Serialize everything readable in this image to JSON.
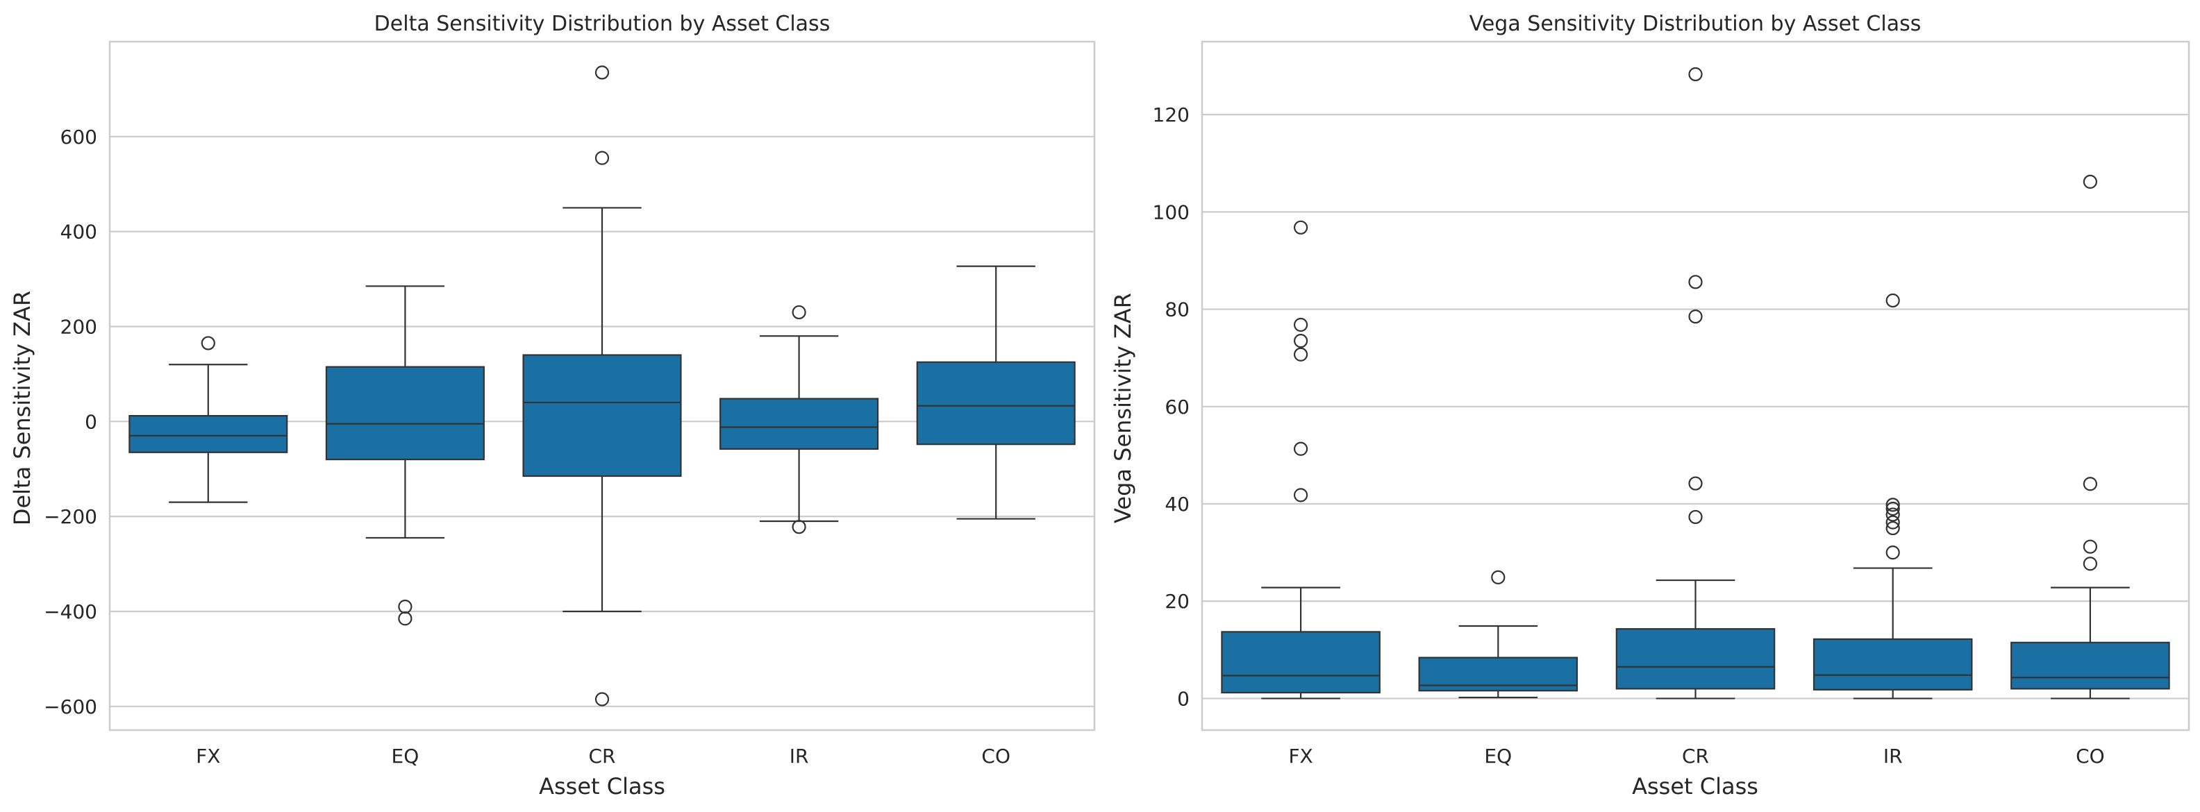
{
  "colors": {
    "box_fill": "#1a6fa3",
    "box_edge": "#333333",
    "grid": "#cccccc",
    "spine": "#cccccc",
    "background": "#ffffff"
  },
  "chart_data": [
    {
      "type": "box",
      "title": "Delta Sensitivity Distribution by Asset Class",
      "xlabel": "Asset Class",
      "ylabel": "Delta Sensitivity ZAR",
      "categories": [
        "FX",
        "EQ",
        "CR",
        "IR",
        "CO"
      ],
      "ylim": [
        -650,
        800
      ],
      "yticks": [
        -600,
        -400,
        -200,
        0,
        200,
        400,
        600
      ],
      "ytick_labels": [
        "−600",
        "−400",
        "−200",
        "0",
        "200",
        "400",
        "600"
      ],
      "grid": "horizontal",
      "boxes": [
        {
          "category": "FX",
          "whisker_low": -170,
          "q1": -65,
          "median": -30,
          "q3": 12,
          "whisker_high": 120,
          "outliers": [
            165
          ]
        },
        {
          "category": "EQ",
          "whisker_low": -245,
          "q1": -80,
          "median": -5,
          "q3": 115,
          "whisker_high": 285,
          "outliers": [
            -390,
            -415
          ]
        },
        {
          "category": "CR",
          "whisker_low": -400,
          "q1": -115,
          "median": 40,
          "q3": 140,
          "whisker_high": 450,
          "outliers": [
            555,
            735,
            -585
          ]
        },
        {
          "category": "IR",
          "whisker_low": -210,
          "q1": -58,
          "median": -12,
          "q3": 48,
          "whisker_high": 180,
          "outliers": [
            230,
            -222
          ]
        },
        {
          "category": "CO",
          "whisker_low": -205,
          "q1": -48,
          "median": 33,
          "q3": 125,
          "whisker_high": 327,
          "outliers": []
        }
      ]
    },
    {
      "type": "box",
      "title": "Vega Sensitivity Distribution by Asset Class",
      "xlabel": "Asset Class",
      "ylabel": "Vega Sensitivity ZAR",
      "categories": [
        "FX",
        "EQ",
        "CR",
        "IR",
        "CO"
      ],
      "ylim": [
        -6.5,
        135
      ],
      "yticks": [
        0,
        20,
        40,
        60,
        80,
        100,
        120
      ],
      "ytick_labels": [
        "0",
        "20",
        "40",
        "60",
        "80",
        "100",
        "120"
      ],
      "grid": "horizontal",
      "boxes": [
        {
          "category": "FX",
          "whisker_low": 0,
          "q1": 1.2,
          "median": 4.7,
          "q3": 13.7,
          "whisker_high": 22.8,
          "outliers": [
            41.8,
            51.3,
            70.7,
            73.5,
            76.8,
            96.8
          ]
        },
        {
          "category": "EQ",
          "whisker_low": 0.2,
          "q1": 1.6,
          "median": 2.7,
          "q3": 8.4,
          "whisker_high": 14.9,
          "outliers": [
            24.9
          ]
        },
        {
          "category": "CR",
          "whisker_low": 0,
          "q1": 2,
          "median": 6.5,
          "q3": 14.3,
          "whisker_high": 24.3,
          "outliers": [
            37.3,
            44.2,
            78.5,
            85.6,
            128.3
          ]
        },
        {
          "category": "IR",
          "whisker_low": 0,
          "q1": 1.8,
          "median": 4.8,
          "q3": 12.2,
          "whisker_high": 26.8,
          "outliers": [
            30,
            35,
            36.2,
            37.8,
            39,
            39.8,
            81.8
          ]
        },
        {
          "category": "CO",
          "whisker_low": 0,
          "q1": 2,
          "median": 4.3,
          "q3": 11.5,
          "whisker_high": 22.8,
          "outliers": [
            27.7,
            31.2,
            44.1,
            106.2
          ]
        }
      ]
    }
  ]
}
